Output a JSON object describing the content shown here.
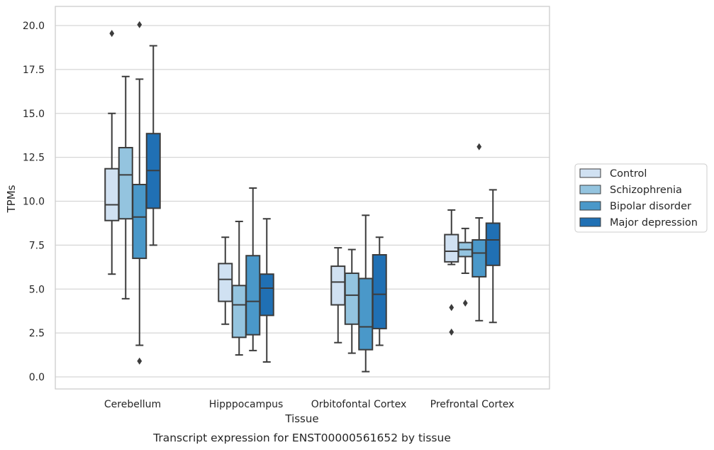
{
  "chart_data": {
    "type": "box",
    "title": "",
    "caption": "Transcript expression for ENST00000561652 by tissue",
    "xlabel": "Tissue",
    "ylabel": "TPMs",
    "ylim": [
      -0.6,
      21.1
    ],
    "yticks": [
      "0.0",
      "2.5",
      "5.0",
      "7.5",
      "10.0",
      "12.5",
      "15.0",
      "17.5",
      "20.0"
    ],
    "grid": "horizontal",
    "legend_position": "right",
    "categories": [
      "Cerebellum",
      "Hipppocampus",
      "Orbitofontal Cortex",
      "Prefrontal Cortex"
    ],
    "series": [
      {
        "name": "Control",
        "color": "#d0e1f2",
        "boxes": [
          {
            "whisker_low": 5.85,
            "q1": 8.9,
            "median": 9.8,
            "q3": 11.85,
            "whisker_high": 15.0,
            "outliers": [
              19.55
            ]
          },
          {
            "whisker_low": 3.0,
            "q1": 4.3,
            "median": 5.55,
            "q3": 6.45,
            "whisker_high": 7.95,
            "outliers": []
          },
          {
            "whisker_low": 1.95,
            "q1": 4.1,
            "median": 5.4,
            "q3": 6.3,
            "whisker_high": 7.35,
            "outliers": []
          },
          {
            "whisker_low": 6.4,
            "q1": 6.55,
            "median": 7.15,
            "q3": 8.1,
            "whisker_high": 9.5,
            "outliers": [
              3.95,
              2.55
            ]
          }
        ]
      },
      {
        "name": "Schizophrenia",
        "color": "#94c4df",
        "boxes": [
          {
            "whisker_low": 4.45,
            "q1": 9.0,
            "median": 11.5,
            "q3": 13.05,
            "whisker_high": 17.1,
            "outliers": []
          },
          {
            "whisker_low": 1.25,
            "q1": 2.25,
            "median": 4.1,
            "q3": 5.2,
            "whisker_high": 8.85,
            "outliers": []
          },
          {
            "whisker_low": 1.35,
            "q1": 3.0,
            "median": 4.65,
            "q3": 5.9,
            "whisker_high": 7.25,
            "outliers": []
          },
          {
            "whisker_low": 5.9,
            "q1": 6.85,
            "median": 7.25,
            "q3": 7.65,
            "whisker_high": 8.45,
            "outliers": [
              4.2
            ]
          }
        ]
      },
      {
        "name": "Bipolar disorder",
        "color": "#4a98c9",
        "boxes": [
          {
            "whisker_low": 1.8,
            "q1": 6.75,
            "median": 9.1,
            "q3": 10.95,
            "whisker_high": 16.95,
            "outliers": [
              20.05,
              0.9
            ]
          },
          {
            "whisker_low": 1.5,
            "q1": 2.4,
            "median": 4.3,
            "q3": 6.9,
            "whisker_high": 10.75,
            "outliers": []
          },
          {
            "whisker_low": 0.3,
            "q1": 1.55,
            "median": 2.85,
            "q3": 5.6,
            "whisker_high": 9.2,
            "outliers": []
          },
          {
            "whisker_low": 3.2,
            "q1": 5.7,
            "median": 7.05,
            "q3": 7.8,
            "whisker_high": 9.05,
            "outliers": [
              13.1
            ]
          }
        ]
      },
      {
        "name": "Major depression",
        "color": "#2070b4",
        "boxes": [
          {
            "whisker_low": 7.5,
            "q1": 9.6,
            "median": 11.75,
            "q3": 13.85,
            "whisker_high": 18.85,
            "outliers": []
          },
          {
            "whisker_low": 0.85,
            "q1": 3.5,
            "median": 5.05,
            "q3": 5.85,
            "whisker_high": 9.0,
            "outliers": []
          },
          {
            "whisker_low": 1.8,
            "q1": 2.75,
            "median": 4.7,
            "q3": 6.95,
            "whisker_high": 7.95,
            "outliers": []
          },
          {
            "whisker_low": 3.1,
            "q1": 6.35,
            "median": 7.8,
            "q3": 8.75,
            "whisker_high": 10.65,
            "outliers": []
          }
        ]
      }
    ]
  }
}
